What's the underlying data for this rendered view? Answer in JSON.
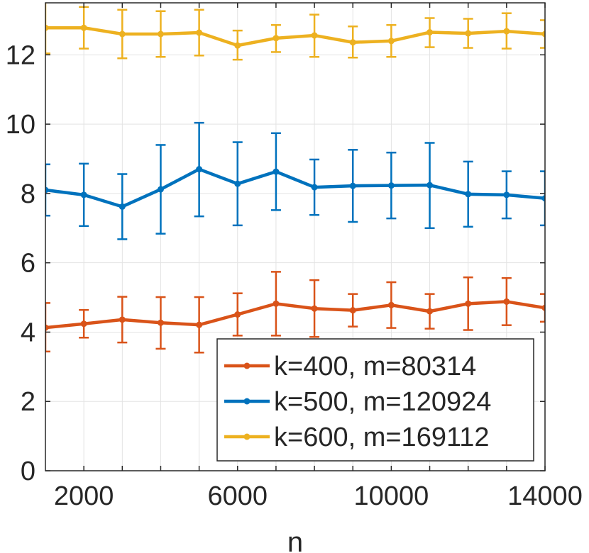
{
  "chart_data": {
    "type": "line",
    "title": "",
    "xlabel": "n",
    "ylabel": "",
    "xlim": [
      1000,
      14000
    ],
    "ylim": [
      0,
      13.5
    ],
    "xticks": [
      2000,
      6000,
      10000,
      14000
    ],
    "yticks": [
      0,
      2,
      4,
      6,
      8,
      10,
      12
    ],
    "grid": true,
    "legend_position": "bottom-right",
    "x": [
      1000,
      2000,
      3000,
      4000,
      5000,
      6000,
      7000,
      8000,
      9000,
      10000,
      11000,
      12000,
      13000,
      14000
    ],
    "series": [
      {
        "name": "k=400, m=80314",
        "color": "#D95319",
        "values": [
          4.13,
          4.24,
          4.36,
          4.27,
          4.21,
          4.51,
          4.82,
          4.68,
          4.63,
          4.78,
          4.6,
          4.82,
          4.88,
          4.7
        ],
        "error_low": [
          3.44,
          3.84,
          3.7,
          3.52,
          3.41,
          3.9,
          3.9,
          3.86,
          4.16,
          4.12,
          4.1,
          4.06,
          4.2,
          4.3
        ],
        "error_high": [
          4.84,
          4.64,
          5.02,
          5.01,
          5.01,
          5.12,
          5.74,
          5.5,
          5.1,
          5.44,
          5.1,
          5.58,
          5.56,
          5.1
        ]
      },
      {
        "name": "k=500, m=120924",
        "color": "#0072BD",
        "values": [
          8.1,
          7.96,
          7.62,
          8.12,
          8.7,
          8.28,
          8.63,
          8.18,
          8.22,
          8.23,
          8.24,
          7.98,
          7.96,
          7.86
        ],
        "error_low": [
          7.36,
          7.06,
          6.68,
          6.84,
          7.34,
          7.08,
          7.52,
          7.38,
          7.18,
          7.28,
          7.0,
          7.04,
          7.28,
          7.08
        ],
        "error_high": [
          8.84,
          8.86,
          8.56,
          9.4,
          10.04,
          9.48,
          9.74,
          8.98,
          9.26,
          9.18,
          9.46,
          8.92,
          8.64,
          8.64
        ]
      },
      {
        "name": "k=600, m=169112",
        "color": "#EDB120",
        "values": [
          12.78,
          12.78,
          12.6,
          12.6,
          12.64,
          12.27,
          12.48,
          12.56,
          12.36,
          12.4,
          12.65,
          12.62,
          12.68,
          12.6
        ],
        "error_low": [
          12.04,
          12.18,
          11.9,
          11.94,
          11.98,
          11.86,
          12.08,
          11.94,
          11.92,
          11.94,
          12.22,
          12.2,
          12.18,
          12.2
        ],
        "error_high": [
          13.52,
          13.38,
          13.3,
          13.26,
          13.3,
          12.7,
          12.86,
          13.16,
          12.82,
          12.86,
          13.06,
          13.04,
          13.2,
          13.0
        ]
      }
    ]
  }
}
